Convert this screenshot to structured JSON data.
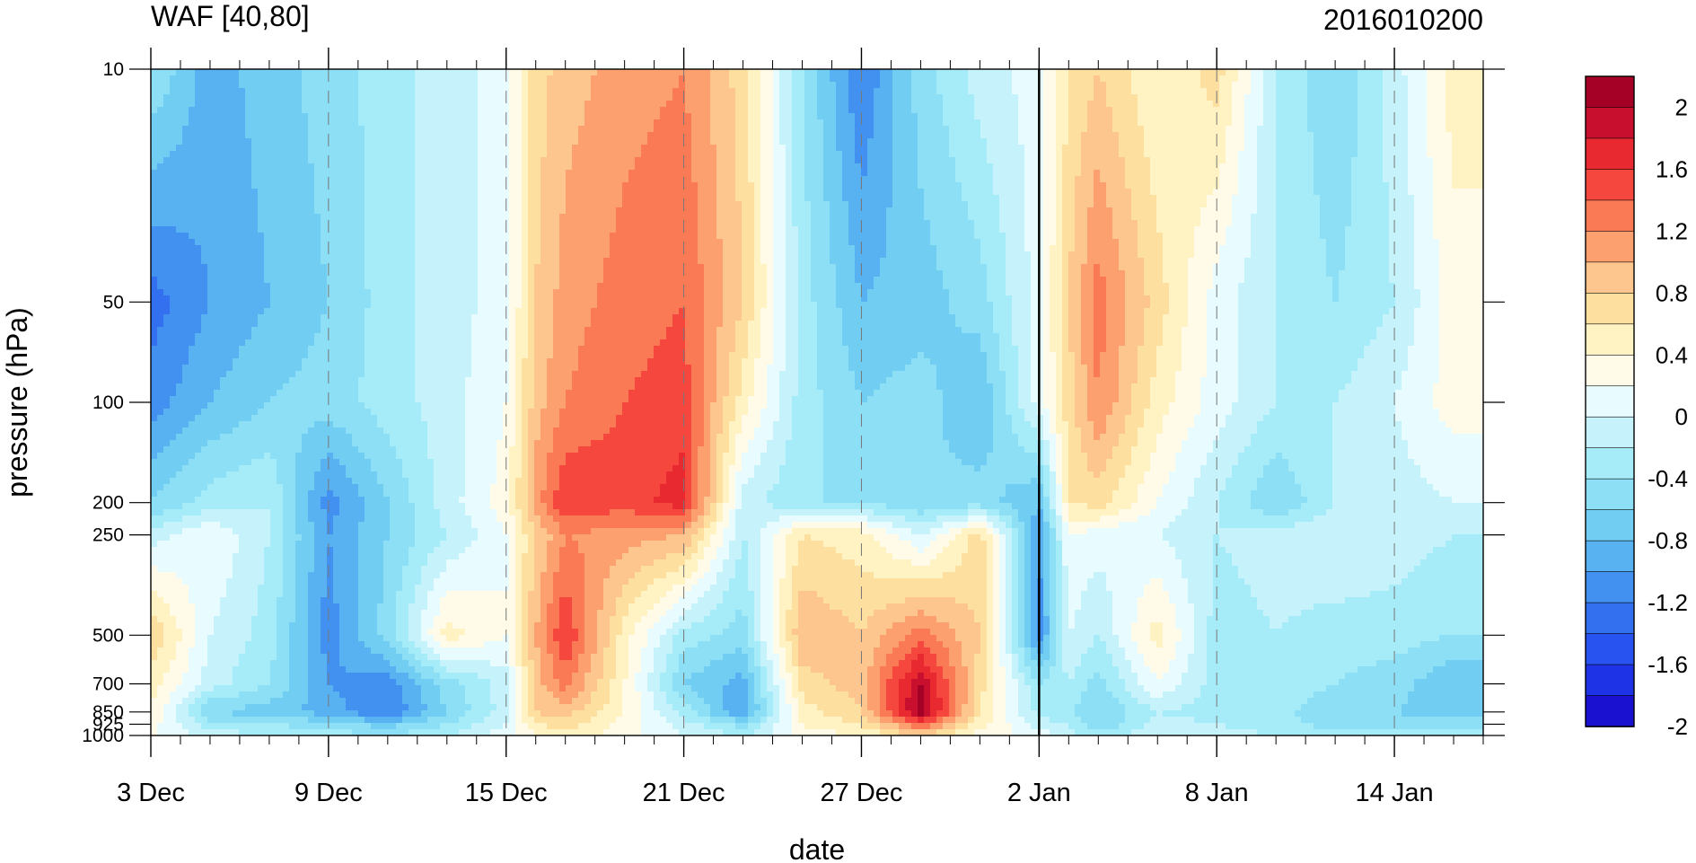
{
  "chart_data": {
    "type": "heatmap",
    "title_left": "WAF [40,80]",
    "title_right": "2016010200",
    "xlabel": "date",
    "ylabel": "pressure (hPa)",
    "x_tick_labels": [
      "3 Dec",
      "9 Dec",
      "15 Dec",
      "21 Dec",
      "27 Dec",
      "2 Jan",
      "8 Jan",
      "14 Jan"
    ],
    "y_tick_labels": [
      "10",
      "50",
      "100",
      "200",
      "250",
      "500",
      "700",
      "850",
      "925",
      "1000"
    ],
    "y_levels": [
      10,
      50,
      100,
      200,
      250,
      500,
      700,
      850,
      925,
      1000
    ],
    "y_scale": "log",
    "x_range_days": [
      0,
      45
    ],
    "colorbar_labels": [
      "2",
      "1.6",
      "1.2",
      "0.8",
      "0.4",
      "0",
      "-0.4",
      "-0.8",
      "-1.2",
      "-1.6",
      "-2"
    ],
    "colorbar_colors": [
      "#a50026",
      "#c8102e",
      "#e8292f",
      "#f5473d",
      "#fb7a56",
      "#fca06f",
      "#fdc68e",
      "#fde0a0",
      "#fff3c4",
      "#fffbe8",
      "#e8fbff",
      "#c6f3fb",
      "#a6ebf8",
      "#8ddff5",
      "#72cdf2",
      "#58b1f0",
      "#4291f0",
      "#3270f0",
      "#2853f0",
      "#1f33e6",
      "#1a10d0"
    ],
    "current_day_marker": "2 Jan",
    "date_keys": [
      "3 Dec",
      "5 Dec",
      "7 Dec",
      "9 Dec",
      "11 Dec",
      "13 Dec",
      "15 Dec",
      "16 Dec",
      "17 Dec",
      "19 Dec",
      "21 Dec",
      "23 Dec",
      "25 Dec",
      "27 Dec",
      "29 Dec",
      "31 Dec",
      "2 Jan",
      "3 Jan",
      "4 Jan",
      "6 Jan",
      "8 Jan",
      "10 Jan",
      "12 Jan",
      "14 Jan",
      "16 Jan"
    ],
    "values": [
      [
        -0.6,
        -1.1,
        -0.9,
        -0.7,
        -0.5,
        -0.3,
        -0.1,
        0.5,
        0.7,
        0.9,
        1.0,
        0.5,
        -0.6,
        -1.4,
        -0.7,
        -0.3,
        -0.1,
        0.4,
        0.6,
        0.2,
        0.5,
        -0.4,
        -0.8,
        -0.3,
        0.3
      ],
      [
        -1.5,
        -1.2,
        -1.0,
        -0.8,
        -0.5,
        -0.3,
        -0.1,
        0.6,
        0.9,
        1.1,
        1.2,
        0.6,
        -0.5,
        -1.0,
        -0.9,
        -0.7,
        -0.1,
        0.6,
        1.1,
        0.5,
        -0.1,
        -0.4,
        -0.6,
        -0.4,
        0.1
      ],
      [
        -1.3,
        -1.0,
        -0.8,
        -0.7,
        -0.5,
        -0.3,
        0.0,
        0.7,
        1.0,
        1.2,
        1.3,
        0.3,
        -0.5,
        -0.8,
        -0.7,
        -1.0,
        -0.1,
        0.5,
        1.0,
        0.3,
        -0.1,
        -0.4,
        -0.4,
        -0.2,
        0.1
      ],
      [
        -0.8,
        -0.5,
        -0.4,
        -1.3,
        -0.8,
        -0.3,
        0.1,
        0.9,
        1.4,
        1.3,
        1.5,
        -0.3,
        -0.6,
        -0.6,
        -0.8,
        -0.7,
        -1.0,
        0.4,
        0.5,
        0.0,
        -0.4,
        -0.8,
        -0.4,
        -0.3,
        -0.2
      ],
      [
        -0.3,
        0.0,
        -0.4,
        -1.2,
        -0.8,
        -0.4,
        0.0,
        0.6,
        1.0,
        0.9,
        0.8,
        -0.4,
        0.4,
        0.3,
        -0.2,
        0.5,
        -1.2,
        0.0,
        -0.1,
        -0.2,
        -0.4,
        -0.3,
        -0.2,
        -0.3,
        -0.4
      ],
      [
        0.6,
        -0.2,
        -0.5,
        -1.3,
        -0.7,
        0.3,
        0.0,
        0.8,
        1.4,
        0.3,
        -0.5,
        -0.7,
        0.8,
        0.6,
        1.1,
        0.6,
        -1.3,
        -0.2,
        -0.4,
        0.3,
        -0.5,
        -0.4,
        -0.5,
        -0.5,
        -0.6
      ],
      [
        0.3,
        -0.3,
        -0.6,
        -1.2,
        -1.3,
        -0.7,
        -0.3,
        0.7,
        1.1,
        0.2,
        -0.8,
        -1.1,
        0.5,
        0.7,
        1.8,
        0.5,
        -0.6,
        -0.4,
        -0.7,
        0.0,
        -0.5,
        -0.4,
        -0.6,
        -0.7,
        -1.0
      ],
      [
        0.2,
        -0.8,
        -0.9,
        -1.1,
        -1.4,
        -0.8,
        -0.3,
        0.6,
        0.7,
        0.2,
        -0.5,
        -1.2,
        0.3,
        0.6,
        1.9,
        0.4,
        -0.5,
        -0.6,
        -0.8,
        -0.4,
        -0.5,
        -0.5,
        -0.8,
        -0.8,
        -0.9
      ],
      [
        0.1,
        -0.5,
        -0.6,
        -0.7,
        -0.9,
        -0.6,
        -0.2,
        0.4,
        0.5,
        0.1,
        -0.3,
        -0.7,
        0.2,
        0.4,
        1.2,
        0.3,
        -0.3,
        -0.4,
        -0.8,
        -0.3,
        -0.4,
        -0.5,
        -0.7,
        -0.7,
        -0.7
      ],
      [
        0.0,
        -0.3,
        -0.4,
        -0.5,
        -0.6,
        -0.4,
        -0.1,
        0.2,
        0.3,
        0.1,
        -0.2,
        -0.4,
        0.1,
        0.2,
        0.6,
        0.1,
        -0.1,
        -0.3,
        -0.5,
        -0.2,
        -0.3,
        -0.4,
        -0.5,
        -0.5,
        -0.5
      ]
    ]
  }
}
